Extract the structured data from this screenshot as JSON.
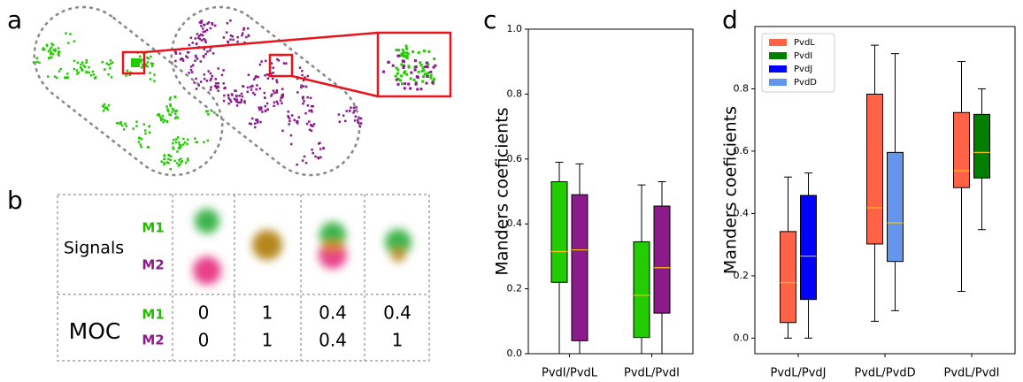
{
  "panels": [
    "a",
    "b",
    "c",
    "d"
  ],
  "table": {
    "row_labels": [
      "Signals",
      "MOC"
    ],
    "channels": [
      "M1",
      "M2"
    ],
    "moc": [
      [
        0,
        0
      ],
      [
        1,
        1
      ],
      [
        0.4,
        0.4
      ],
      [
        0.4,
        1
      ]
    ]
  },
  "chart_data": [
    {
      "type": "box",
      "ylabel": "Manders coeficients",
      "categories": [
        "PvdI/PvdL",
        "PvdL/PvdI"
      ],
      "ylim": [
        0,
        1
      ],
      "yticks": [
        {
          "value": 0,
          "label": "0.0"
        },
        0.2,
        0.4,
        0.6,
        0.8,
        {
          "value": 1,
          "label": "1.0"
        }
      ],
      "median_color": "#f5c400",
      "series": [
        {
          "color": "#22cc00",
          "values": [
            [
              0,
              0.22,
              0.315,
              0.53,
              0.59
            ],
            [
              0,
              0.05,
              0.18,
              0.345,
              0.52
            ]
          ]
        },
        {
          "color": "#8b1a8b",
          "values": [
            [
              0,
              0.04,
              0.32,
              0.49,
              0.585
            ],
            [
              0,
              0.125,
              0.265,
              0.455,
              0.53
            ]
          ]
        }
      ]
    },
    {
      "type": "box",
      "ylabel": "Manders coeficients",
      "categories": [
        "PvdL/PvdJ",
        "PvdL/PvdD",
        "PvdL/PvdI"
      ],
      "ylim": [
        -0.05,
        1.0
      ],
      "yticks": [
        {
          "value": 0,
          "label": "0.0"
        },
        0.2,
        0.4,
        0.6,
        0.8
      ],
      "median_color": "#f5c400",
      "legend": "upper left",
      "series": [
        {
          "name": "PvdL",
          "color": "#ff6347",
          "values": [
            [
              0,
              0.05,
              0.178,
              0.342,
              0.517
            ],
            [
              0.054,
              0.302,
              0.418,
              0.783,
              0.94
            ],
            [
              0.15,
              0.483,
              0.537,
              0.724,
              0.888
            ]
          ]
        },
        {
          "name": "PvdI",
          "color": "#007f00",
          "values": [
            null,
            null,
            [
              0.348,
              0.514,
              0.596,
              0.718,
              0.8
            ]
          ]
        },
        {
          "name": "PvdJ",
          "color": "#0000ff",
          "values": [
            [
              0,
              0.124,
              0.263,
              0.458,
              0.53
            ],
            null,
            null
          ]
        },
        {
          "name": "PvdD",
          "color": "#6495ed",
          "values": [
            null,
            [
              0.088,
              0.246,
              0.37,
              0.596,
              0.913
            ],
            null
          ]
        }
      ]
    }
  ]
}
